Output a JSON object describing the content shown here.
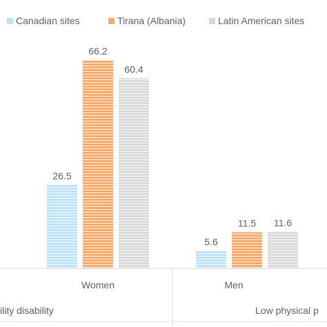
{
  "chart_data": {
    "type": "bar",
    "categories": [
      "Women",
      "Men"
    ],
    "groups": [
      "ility disability",
      "Low physical p"
    ],
    "series": [
      {
        "name": "Canadian sites",
        "values": [
          26.5,
          5.6
        ],
        "color": "#bfe3f6"
      },
      {
        "name": "Tirana (Albania)",
        "values": [
          66.2,
          11.5
        ],
        "color": "#f5a96a"
      },
      {
        "name": "Latin American sites",
        "values": [
          60.4,
          11.6
        ],
        "color": "#d6d6d6"
      }
    ],
    "legend_position": "top",
    "grid": false,
    "ylim": [
      0,
      70
    ]
  }
}
